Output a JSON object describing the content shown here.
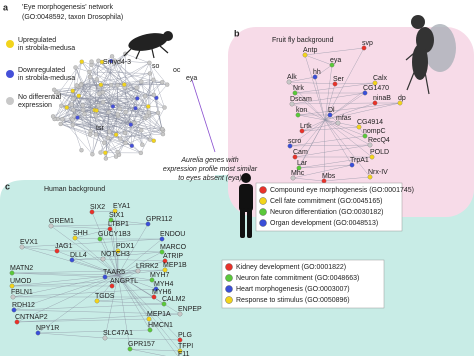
{
  "panel_a": {
    "label": "a",
    "title_lines": [
      "'Eye morphogenesis' network",
      "(GO:0048592, taxon Drosophila)"
    ],
    "legend": [
      [
        "Upregulated",
        "in strobila-medusa"
      ],
      [
        "Downregulated",
        "in strobila-medusa"
      ],
      [
        "No differential",
        "expression"
      ]
    ],
    "genes": [
      "Smyd4-3",
      "so",
      "oc",
      "eya",
      "tsr"
    ],
    "annotation_lines": [
      "Aurelia genes with",
      "expression profile most similar",
      "to eyes absent (eya)"
    ]
  },
  "panel_b": {
    "label": "b",
    "title": "Fruit fly background",
    "genes": [
      "svp",
      "Antp",
      "eya",
      "hh",
      "Alk",
      "Ser",
      "Calx",
      "Nrk",
      "CG1470",
      "Dscam",
      "ninaB",
      "dp",
      "kon",
      "Dl",
      "mfas",
      "Lrtk",
      "CG4914",
      "nompC",
      "scro",
      "RecQ4",
      "Cam",
      "POLD",
      "Lar",
      "TrpA1",
      "Mhc",
      "Mbs",
      "Nrx-IV"
    ],
    "legend": [
      "Compound eye morphogenesis (GO:0001745)",
      "Cell fate commitment (GO:0045165)",
      "Neuron differentiation (GO:0030182)",
      "Organ development (GO:0048513)"
    ]
  },
  "panel_c": {
    "label": "c",
    "title": "Human background",
    "genes": [
      "SIX2",
      "EYA1",
      "SIX1",
      "GPR112",
      "GREM1",
      "LTBP1",
      "SHH",
      "GUCY1B3",
      "ENDOU",
      "EVX1",
      "JAG1",
      "PDX1",
      "MARCO",
      "DLL4",
      "NOTCH3",
      "ATRIP",
      "MEP1B",
      "MATN2",
      "TAAR5",
      "LRRK2",
      "ANGPTL",
      "UMOD",
      "MYH7",
      "MYH4",
      "FBLN1",
      "MYH6",
      "TGDS",
      "CALM2",
      "RDH12",
      "ENPEP",
      "CNTNAP2",
      "MEP1A",
      "HMCN1",
      "NPY1R",
      "SLC47A1",
      "PLG",
      "TFPI",
      "GPR157",
      "F11"
    ],
    "legend": [
      "Kidney development (GO:0001822)",
      "Neuron fate commitment (GO:0048663)",
      "Heart morphogenesis (GO:0003007)",
      "Response to stimulus (GO:0050896)"
    ]
  }
}
